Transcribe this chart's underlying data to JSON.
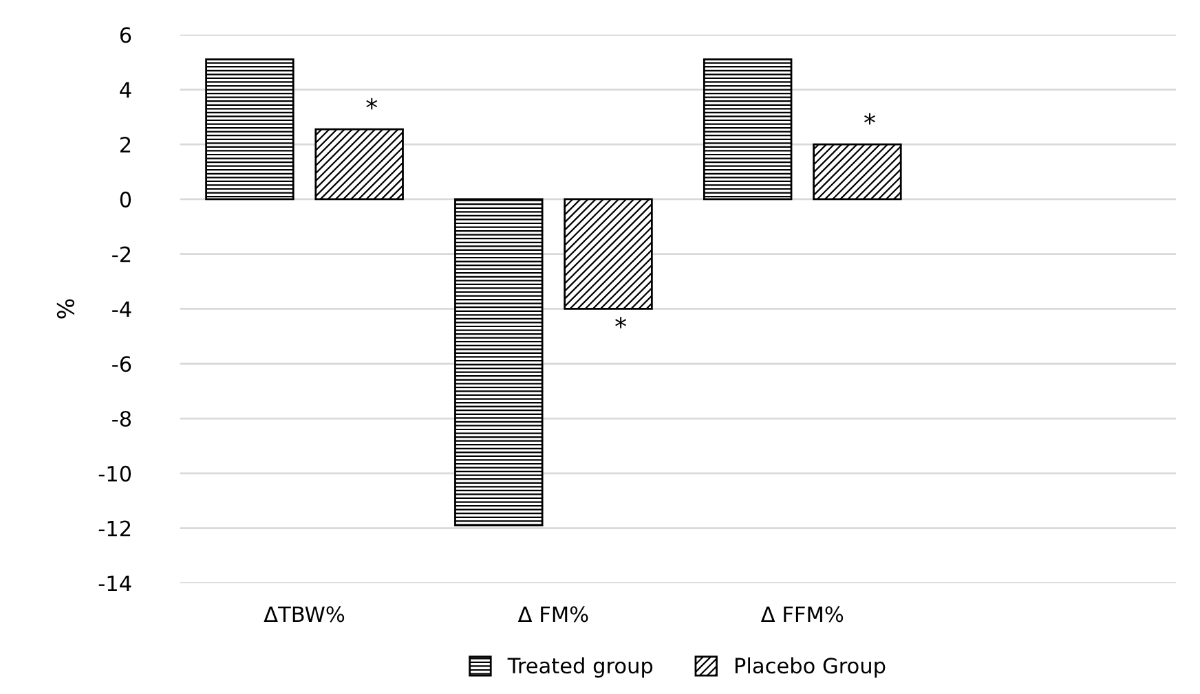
{
  "chart_data": {
    "type": "bar",
    "categories": [
      "ΔTBW%",
      "Δ FM%",
      "Δ FFM%",
      null
    ],
    "ylabel": "%",
    "series": [
      {
        "name": "Treated group",
        "color": "#000000",
        "values": [
          5.1,
          -11.9,
          5.1,
          null
        ]
      },
      {
        "name": "Placebo Group",
        "color": "#000000",
        "values": [
          2.55,
          -4.0,
          2.0,
          null
        ]
      }
    ],
    "annotations": [
      "*",
      "*",
      "*"
    ],
    "ylim": [
      -14,
      6
    ],
    "yticks": [
      -14,
      -12,
      -10,
      -8,
      -6,
      -4,
      -2,
      0,
      2,
      4,
      6
    ],
    "grid": "y",
    "legend": "bottom"
  }
}
